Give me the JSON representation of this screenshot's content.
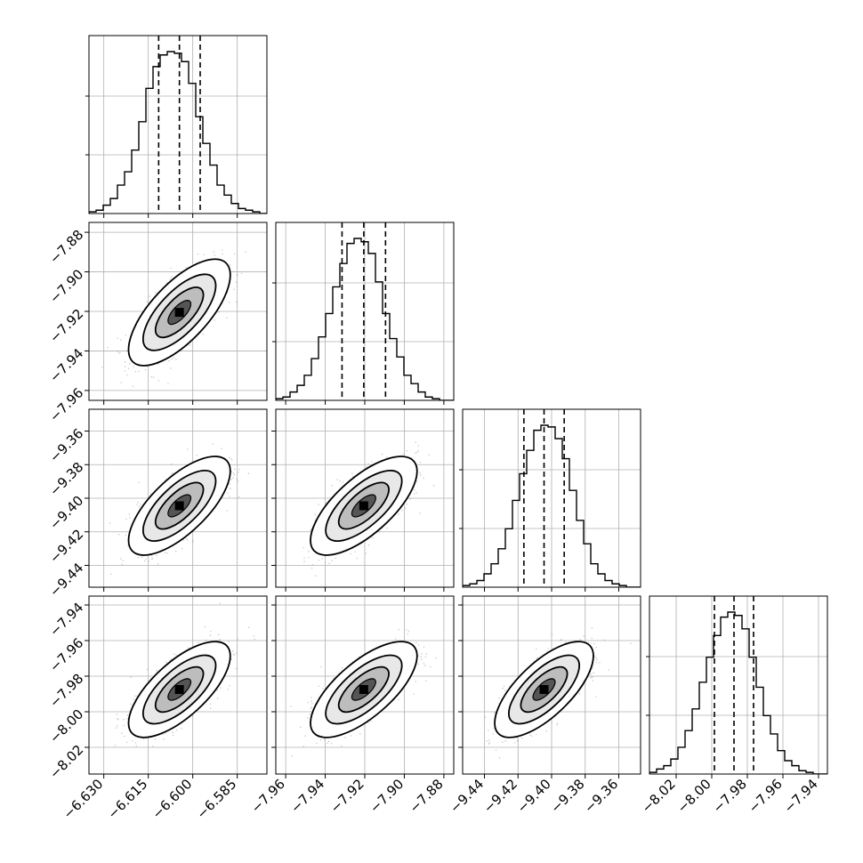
{
  "chart_data": {
    "type": "corner",
    "grid": true,
    "parameters": [
      {
        "range": [
          -6.635,
          -6.575
        ],
        "ticks": [
          {
            "v": -6.63,
            "label": "−6.630"
          },
          {
            "v": -6.615,
            "label": "−6.615"
          },
          {
            "v": -6.6,
            "label": "−6.600"
          },
          {
            "v": -6.585,
            "label": "−6.585"
          }
        ]
      },
      {
        "range": [
          -7.965,
          -7.875
        ],
        "ticks": [
          {
            "v": -7.96,
            "label": "−7.96"
          },
          {
            "v": -7.94,
            "label": "−7.94"
          },
          {
            "v": -7.92,
            "label": "−7.92"
          },
          {
            "v": -7.9,
            "label": "−7.90"
          },
          {
            "v": -7.88,
            "label": "−7.88"
          }
        ]
      },
      {
        "range": [
          -9.453,
          -9.347
        ],
        "ticks": [
          {
            "v": -9.44,
            "label": "−9.44"
          },
          {
            "v": -9.42,
            "label": "−9.42"
          },
          {
            "v": -9.4,
            "label": "−9.40"
          },
          {
            "v": -9.38,
            "label": "−9.38"
          },
          {
            "v": -9.36,
            "label": "−9.36"
          }
        ]
      },
      {
        "range": [
          -8.035,
          -7.935
        ],
        "ticks": [
          {
            "v": -8.02,
            "label": "−8.02"
          },
          {
            "v": -8.0,
            "label": "−8.00"
          },
          {
            "v": -7.98,
            "label": "−7.98"
          },
          {
            "v": -7.96,
            "label": "−7.96"
          },
          {
            "v": -7.94,
            "label": "−7.94"
          }
        ]
      }
    ],
    "histograms": [
      {
        "quantiles": [
          -6.6115,
          -6.6045,
          -6.5975
        ],
        "counts": [
          1,
          2,
          5,
          9,
          17,
          25,
          38,
          55,
          75,
          88,
          95,
          97,
          96,
          91,
          78,
          58,
          42,
          29,
          17,
          11,
          6,
          3,
          2,
          1,
          0
        ]
      },
      {
        "quantiles": [
          -7.9315,
          -7.9205,
          -7.9095
        ],
        "counts": [
          1,
          2,
          5,
          9,
          15,
          25,
          38,
          52,
          68,
          82,
          94,
          97,
          95,
          88,
          71,
          52,
          37,
          26,
          15,
          10,
          5,
          2,
          1,
          0,
          0
        ]
      },
      {
        "quantiles": [
          -9.4165,
          -9.4045,
          -9.3925
        ],
        "counts": [
          1,
          2,
          4,
          8,
          14,
          23,
          35,
          52,
          68,
          82,
          94,
          97,
          96,
          89,
          77,
          58,
          40,
          26,
          14,
          8,
          4,
          2,
          1,
          0,
          0
        ]
      },
      {
        "quantiles": [
          -7.9985,
          -7.9875,
          -7.9765
        ],
        "counts": [
          1,
          3,
          5,
          9,
          16,
          26,
          39,
          55,
          70,
          83,
          94,
          97,
          95,
          87,
          70,
          52,
          35,
          24,
          14,
          8,
          5,
          2,
          1,
          0,
          0
        ]
      }
    ]
  }
}
